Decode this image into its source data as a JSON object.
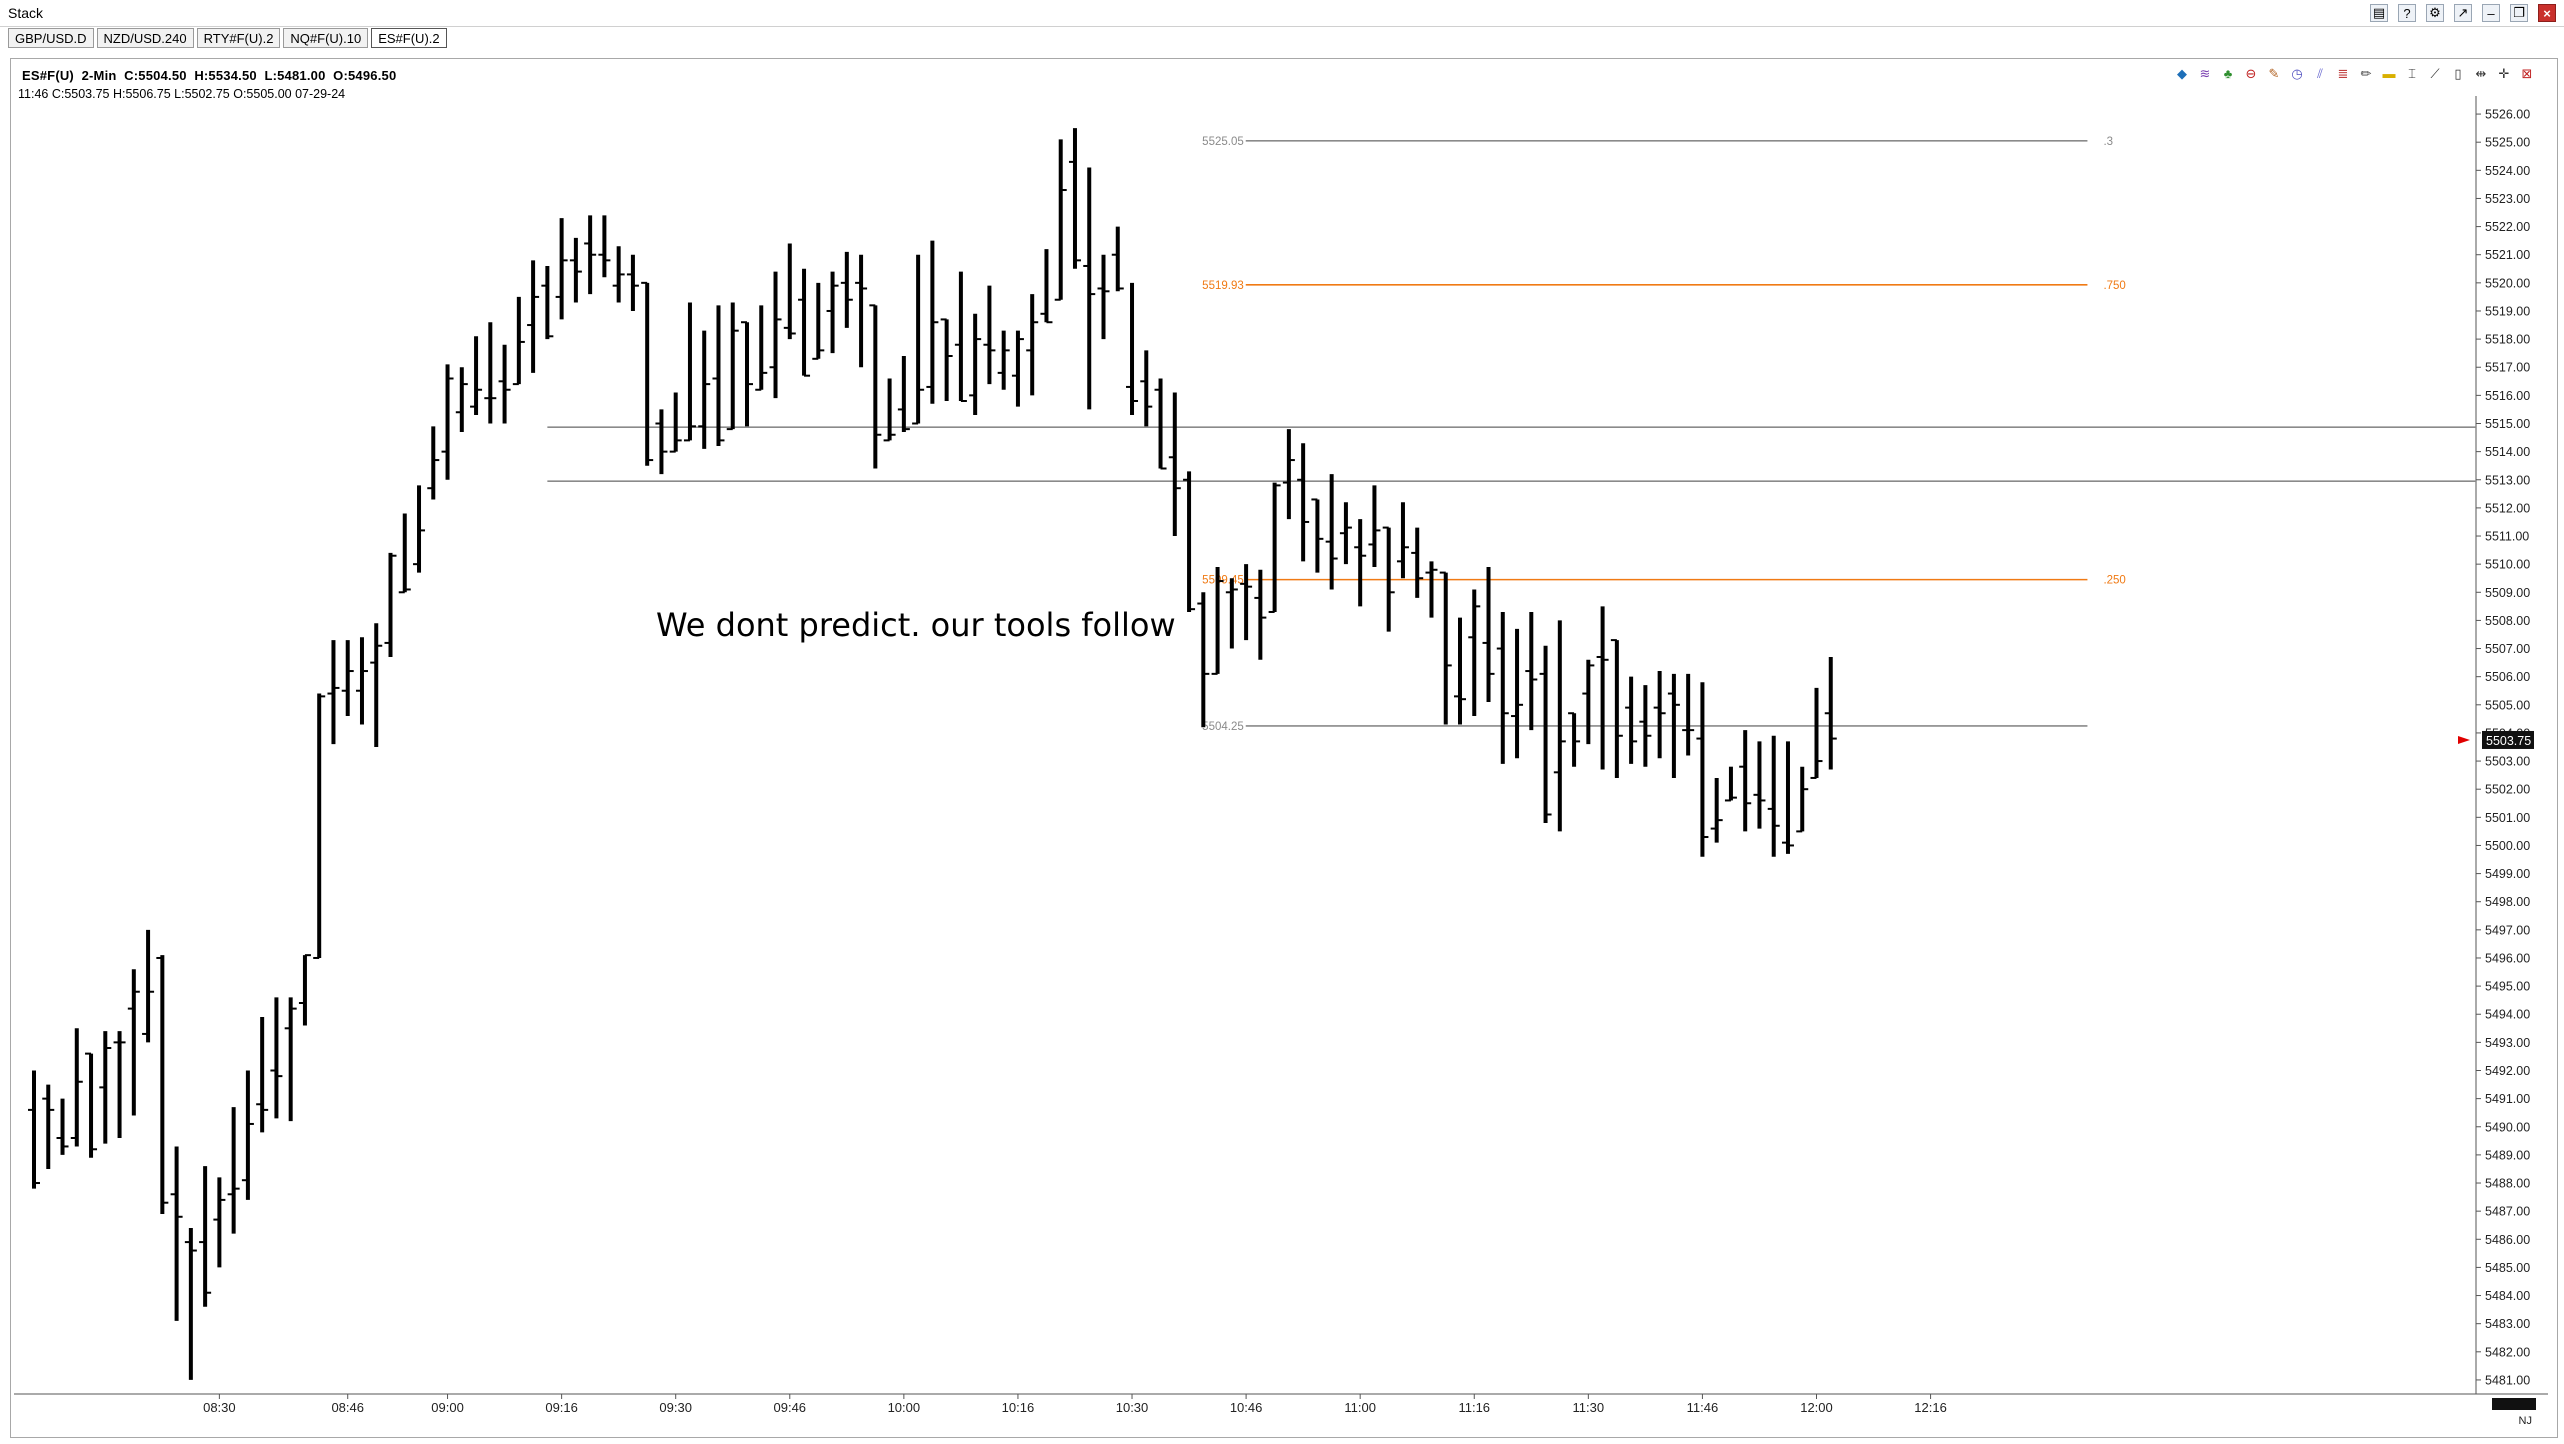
{
  "window": {
    "title": "Stack"
  },
  "tabs": [
    {
      "label": "GBP/USD.D",
      "active": false
    },
    {
      "label": "NZD/USD.240",
      "active": false
    },
    {
      "label": "RTY#F(U).2",
      "active": false
    },
    {
      "label": "NQ#F(U).10",
      "active": false
    },
    {
      "label": "ES#F(U).2",
      "active": true
    }
  ],
  "header": {
    "symbol": "ES#F(U)",
    "interval": "2-Min",
    "close": "C:5504.50",
    "high": "H:5534.50",
    "low": "L:5481.00",
    "open": "O:5496.50",
    "bar_line": "11:46  C:5503.75  H:5506.75  L:5502.75  O:5505.00  07-29-24"
  },
  "toolbar_icons": [
    "layers-icon",
    "waves-icon",
    "tree-icon",
    "stop-icon",
    "brush-icon",
    "clock-icon",
    "lines-icon",
    "fib-icon",
    "pencil-icon",
    "rect-icon",
    "cursor-icon",
    "line-icon",
    "bar-icon",
    "split-icon",
    "crosshair-icon",
    "close-icon"
  ],
  "colors": {
    "fib_orange": "#f07a14",
    "gray_line": "#8a8a8a",
    "bars": "#000000",
    "price_marker": "#e00000"
  },
  "chart_data": {
    "type": "ohlc",
    "title": "",
    "ylim": [
      5480.5,
      5526.5
    ],
    "y_ticks": [
      "5481.00",
      "5482.00",
      "5483.00",
      "5484.00",
      "5485.00",
      "5486.00",
      "5487.00",
      "5488.00",
      "5489.00",
      "5490.00",
      "5491.00",
      "5492.00",
      "5493.00",
      "5494.00",
      "5495.00",
      "5496.00",
      "5497.00",
      "5498.00",
      "5499.00",
      "5500.00",
      "5501.00",
      "5502.00",
      "5503.00",
      "5504.00",
      "5505.00",
      "5506.00",
      "5507.00",
      "5508.00",
      "5509.00",
      "5510.00",
      "5511.00",
      "5512.00",
      "5513.00",
      "5514.00",
      "5515.00",
      "5516.00",
      "5517.00",
      "5518.00",
      "5519.00",
      "5520.00",
      "5521.00",
      "5522.00",
      "5523.00",
      "5524.00",
      "5525.00",
      "5526.00"
    ],
    "x_ticks": [
      "08:30",
      "08:46",
      "09:00",
      "09:16",
      "09:30",
      "09:46",
      "10:00",
      "10:16",
      "10:30",
      "10:46",
      "11:00",
      "11:16",
      "11:30",
      "11:46",
      "12:00",
      "12:16"
    ],
    "x_tick_bars": [
      13,
      22,
      29,
      37,
      45,
      53,
      61,
      69,
      77,
      85,
      93,
      101,
      109,
      117,
      125,
      133
    ],
    "current_price": "5503.75",
    "bars": [
      [
        5490.6,
        5492.0,
        5487.8,
        5488.0
      ],
      [
        5491.0,
        5491.5,
        5488.5,
        5490.6
      ],
      [
        5489.6,
        5491.0,
        5489.0,
        5489.3
      ],
      [
        5489.6,
        5493.5,
        5489.3,
        5491.6
      ],
      [
        5492.6,
        5492.4,
        5488.9,
        5489.2
      ],
      [
        5491.4,
        5493.4,
        5489.4,
        5492.8
      ],
      [
        5493.0,
        5493.4,
        5489.6,
        5493.0
      ],
      [
        5494.2,
        5495.6,
        5490.4,
        5494.8
      ],
      [
        5493.3,
        5497.0,
        5493.0,
        5494.8
      ],
      [
        5496.0,
        5496.1,
        5486.9,
        5487.3
      ],
      [
        5487.6,
        5489.3,
        5483.1,
        5486.8
      ],
      [
        5485.9,
        5486.4,
        5481.0,
        5485.6
      ],
      [
        5485.9,
        5488.6,
        5483.6,
        5484.1
      ],
      [
        5486.7,
        5488.2,
        5485.0,
        5487.4
      ],
      [
        5487.6,
        5490.7,
        5486.2,
        5487.8
      ],
      [
        5488.1,
        5492.0,
        5487.4,
        5490.1
      ],
      [
        5490.8,
        5493.9,
        5489.8,
        5490.6
      ],
      [
        5492.0,
        5494.6,
        5490.3,
        5491.8
      ],
      [
        5493.5,
        5494.6,
        5490.2,
        5494.2
      ],
      [
        5494.4,
        5496.1,
        5493.6,
        5496.1
      ],
      [
        5496.0,
        5505.4,
        5496.0,
        5505.3
      ],
      [
        5505.4,
        5507.3,
        5503.6,
        5505.6
      ],
      [
        5505.5,
        5507.3,
        5504.6,
        5506.2
      ],
      [
        5505.5,
        5507.4,
        5504.3,
        5506.2
      ],
      [
        5506.5,
        5507.9,
        5503.5,
        5507.1
      ],
      [
        5507.2,
        5510.4,
        5506.7,
        5510.3
      ],
      [
        5509.0,
        5511.8,
        5509.2,
        5509.1
      ],
      [
        5510.0,
        5512.8,
        5509.7,
        5511.2
      ],
      [
        5512.7,
        5514.9,
        5512.3,
        5513.7
      ],
      [
        5514.0,
        5517.1,
        5513.0,
        5516.6
      ],
      [
        5515.4,
        5517.0,
        5514.7,
        5516.4
      ],
      [
        5515.6,
        5518.1,
        5515.3,
        5516.2
      ],
      [
        5515.9,
        5518.6,
        5515.0,
        5515.9
      ],
      [
        5516.5,
        5517.8,
        5515.0,
        5516.2
      ],
      [
        5516.4,
        5519.5,
        5516.9,
        5517.9
      ],
      [
        5518.5,
        5520.8,
        5516.8,
        5519.5
      ],
      [
        5519.9,
        5520.6,
        5518.0,
        5518.1
      ],
      [
        5519.5,
        5522.3,
        5518.7,
        5520.8
      ],
      [
        5520.8,
        5521.6,
        5519.3,
        5520.4
      ],
      [
        5521.4,
        5522.4,
        5519.6,
        5521.0
      ],
      [
        5521.0,
        5522.4,
        5520.2,
        5520.8
      ],
      [
        5519.9,
        5521.3,
        5519.3,
        5520.3
      ],
      [
        5520.3,
        5521.0,
        5519.0,
        5519.9
      ],
      [
        5520.0,
        5519.6,
        5513.5,
        5513.7
      ],
      [
        5515.0,
        5515.5,
        5513.2,
        5514.0
      ],
      [
        5514.0,
        5516.1,
        5514.0,
        5514.4
      ],
      [
        5514.4,
        5519.3,
        5514.4,
        5514.9
      ],
      [
        5514.9,
        5518.3,
        5514.1,
        5516.4
      ],
      [
        5516.6,
        5519.2,
        5514.2,
        5514.4
      ],
      [
        5514.8,
        5519.3,
        5515.1,
        5518.3
      ],
      [
        5518.6,
        5518.4,
        5514.9,
        5516.4
      ],
      [
        5516.2,
        5519.2,
        5516.3,
        5516.8
      ],
      [
        5517.0,
        5520.4,
        5515.9,
        5518.7
      ],
      [
        5518.4,
        5521.4,
        5518.0,
        5518.2
      ],
      [
        5519.4,
        5520.5,
        5517.3,
        5516.7
      ],
      [
        5517.3,
        5520.0,
        5517.4,
        5517.6
      ],
      [
        5519.0,
        5520.4,
        5517.5,
        5519.9
      ],
      [
        5520.0,
        5521.1,
        5518.4,
        5519.4
      ],
      [
        5520.0,
        5521.0,
        5517.0,
        5519.8
      ],
      [
        5519.2,
        5518.4,
        5513.4,
        5514.6
      ],
      [
        5514.4,
        5516.6,
        5514.4,
        5514.6
      ],
      [
        5515.5,
        5517.4,
        5514.7,
        5514.8
      ],
      [
        5515.0,
        5521.0,
        5515.4,
        5516.2
      ],
      [
        5516.3,
        5521.5,
        5515.7,
        5518.6
      ],
      [
        5518.7,
        5517.8,
        5515.8,
        5517.4
      ],
      [
        5517.8,
        5520.4,
        5517.5,
        5515.8
      ],
      [
        5516.0,
        5518.9,
        5515.3,
        5518.0
      ],
      [
        5517.8,
        5519.9,
        5516.4,
        5517.6
      ],
      [
        5516.8,
        5518.3,
        5516.2,
        5517.6
      ],
      [
        5516.7,
        5518.3,
        5515.6,
        5518.0
      ],
      [
        5517.6,
        5519.6,
        5516.0,
        5518.6
      ],
      [
        5518.9,
        5521.2,
        5518.6,
        5518.6
      ],
      [
        5519.4,
        5525.1,
        5519.6,
        5523.3
      ],
      [
        5524.3,
        5525.5,
        5520.5,
        5520.8
      ],
      [
        5520.6,
        5524.1,
        5515.5,
        5519.6
      ],
      [
        5519.8,
        5521.0,
        5518.0,
        5519.7
      ],
      [
        5521.0,
        5522.0,
        5519.7,
        5519.8
      ],
      [
        5516.3,
        5520.0,
        5515.3,
        5515.8
      ],
      [
        5516.5,
        5517.6,
        5514.9,
        5515.6
      ],
      [
        5516.2,
        5516.6,
        5514.5,
        5513.4
      ],
      [
        5513.8,
        5516.1,
        5511.0,
        5512.7
      ],
      [
        5513.0,
        5513.3,
        5508.3,
        5508.4
      ],
      [
        5508.6,
        5509.0,
        5504.2,
        5506.1
      ],
      [
        5506.1,
        5509.9,
        5506.1,
        5509.4
      ],
      [
        5509.0,
        5509.5,
        5507.0,
        5509.1
      ],
      [
        5509.3,
        5510.0,
        5507.3,
        5509.2
      ],
      [
        5508.8,
        5509.8,
        5506.6,
        5508.1
      ],
      [
        5508.3,
        5512.9,
        5508.3,
        5512.8
      ],
      [
        5512.9,
        5514.8,
        5511.6,
        5513.7
      ],
      [
        5513.0,
        5514.3,
        5510.1,
        5511.5
      ],
      [
        5512.3,
        5512.3,
        5509.7,
        5510.9
      ],
      [
        5510.8,
        5513.2,
        5509.1,
        5510.2
      ],
      [
        5511.1,
        5512.2,
        5510.0,
        5511.3
      ],
      [
        5510.6,
        5511.6,
        5508.5,
        5510.3
      ],
      [
        5510.7,
        5512.8,
        5509.9,
        5511.2
      ],
      [
        5511.3,
        5511.1,
        5507.6,
        5509.0
      ],
      [
        5510.1,
        5512.2,
        5509.5,
        5510.6
      ],
      [
        5510.4,
        5511.3,
        5508.8,
        5509.5
      ],
      [
        5509.7,
        5510.1,
        5508.1,
        5509.8
      ],
      [
        5509.7,
        5509.3,
        5504.3,
        5506.4
      ],
      [
        5505.3,
        5508.1,
        5504.3,
        5505.2
      ],
      [
        5507.4,
        5509.1,
        5504.6,
        5508.5
      ],
      [
        5507.2,
        5509.9,
        5505.1,
        5506.1
      ],
      [
        5507.0,
        5508.3,
        5502.9,
        5504.7
      ],
      [
        5504.6,
        5507.7,
        5503.1,
        5505.0
      ],
      [
        5506.2,
        5508.3,
        5504.1,
        5505.9
      ],
      [
        5506.1,
        5507.1,
        5500.8,
        5501.1
      ],
      [
        5502.6,
        5508.0,
        5500.5,
        5503.7
      ],
      [
        5504.7,
        5503.1,
        5502.8,
        5503.7
      ],
      [
        5505.4,
        5506.6,
        5503.6,
        5506.4
      ],
      [
        5506.7,
        5508.5,
        5502.7,
        5506.6
      ],
      [
        5507.3,
        5505.4,
        5502.4,
        5503.9
      ],
      [
        5504.9,
        5506.0,
        5502.9,
        5503.7
      ],
      [
        5504.4,
        5505.7,
        5502.8,
        5503.9
      ],
      [
        5504.9,
        5506.2,
        5503.1,
        5504.7
      ],
      [
        5505.4,
        5506.1,
        5502.4,
        5505.0
      ],
      [
        5504.1,
        5506.1,
        5503.2,
        5504.1
      ],
      [
        5503.8,
        5505.8,
        5499.6,
        5500.3
      ],
      [
        5500.6,
        5502.4,
        5500.1,
        5500.9
      ],
      [
        5501.6,
        5502.8,
        5501.7,
        5501.7
      ],
      [
        5502.8,
        5504.1,
        5500.5,
        5501.5
      ],
      [
        5501.8,
        5503.7,
        5500.6,
        5501.6
      ],
      [
        5501.3,
        5503.9,
        5499.6,
        5500.7
      ],
      [
        5500.1,
        5503.7,
        5499.7,
        5500.0
      ],
      [
        5500.5,
        5502.8,
        5500.5,
        5502.0
      ],
      [
        5502.4,
        5505.6,
        5503.4,
        5503.0
      ],
      [
        5504.7,
        5506.7,
        5502.7,
        5503.8
      ]
    ],
    "hlines": [
      {
        "kind": "fib",
        "color": "gray",
        "label": "5525.05",
        "right_label": ".3",
        "y": 5525.05,
        "start_bar": 87.5,
        "end_bar": 144
      },
      {
        "kind": "fib",
        "color": "orange",
        "label": "5519.93",
        "right_label": ".750",
        "y": 5519.93,
        "start_bar": 87.5,
        "end_bar": 144
      },
      {
        "kind": "fib",
        "color": "orange",
        "label": "5509.45",
        "right_label": ".250",
        "y": 5509.45,
        "start_bar": 87.5,
        "end_bar": 144
      },
      {
        "kind": "fib",
        "color": "gray",
        "label": "5504.25",
        "right_label": "",
        "y": 5504.25,
        "start_bar": 87.5,
        "end_bar": 144
      },
      {
        "kind": "level",
        "color": "gray",
        "y": 5514.87,
        "start_bar": 36,
        "end_bar": 180
      },
      {
        "kind": "level",
        "color": "gray",
        "y": 5512.95,
        "start_bar": 36,
        "end_bar": 180
      }
    ],
    "annotation": "We dont predict. our tools follow"
  },
  "status": {
    "nj_label": "NJ"
  }
}
